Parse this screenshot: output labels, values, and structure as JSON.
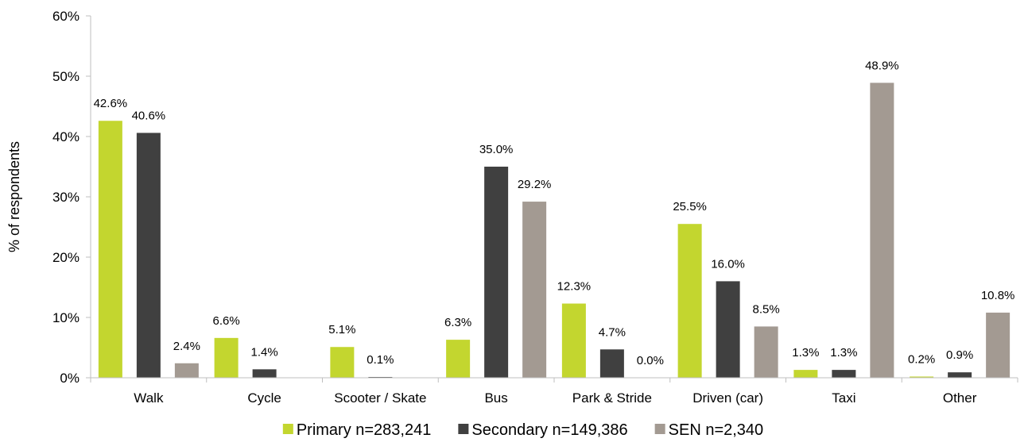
{
  "chart_data": {
    "type": "bar",
    "categories": [
      "Walk",
      "Cycle",
      "Scooter / Skate",
      "Bus",
      "Park & Stride",
      "Driven (car)",
      "Taxi",
      "Other"
    ],
    "series": [
      {
        "name": "Primary n=283,241",
        "color": "#c3d62f",
        "values": [
          42.6,
          6.6,
          5.1,
          6.3,
          12.3,
          25.5,
          1.3,
          0.2
        ],
        "labels": [
          "42.6%",
          "6.6%",
          "5.1%",
          "6.3%",
          "12.3%",
          "25.5%",
          "1.3%",
          "0.2%"
        ]
      },
      {
        "name": "Secondary n=149,386",
        "color": "#404040",
        "values": [
          40.6,
          1.4,
          0.1,
          35.0,
          4.7,
          16.0,
          1.3,
          0.9
        ],
        "labels": [
          "40.6%",
          "1.4%",
          "0.1%",
          "35.0%",
          "4.7%",
          "16.0%",
          "1.3%",
          "0.9%"
        ]
      },
      {
        "name": "SEN n=2,340",
        "color": "#a39a92",
        "values": [
          2.4,
          null,
          null,
          29.2,
          0.0,
          8.5,
          48.9,
          10.8
        ],
        "labels": [
          "2.4%",
          "",
          "",
          "29.2%",
          "0.0%",
          "8.5%",
          "48.9%",
          "10.8%"
        ]
      }
    ],
    "ylabel": "% of respondents",
    "ylim": [
      0,
      60
    ],
    "yticks": [
      0,
      10,
      20,
      30,
      40,
      50,
      60
    ],
    "ytick_labels": [
      "0%",
      "10%",
      "20%",
      "30%",
      "40%",
      "50%",
      "60%"
    ],
    "grid": false,
    "legend_position": "bottom"
  }
}
